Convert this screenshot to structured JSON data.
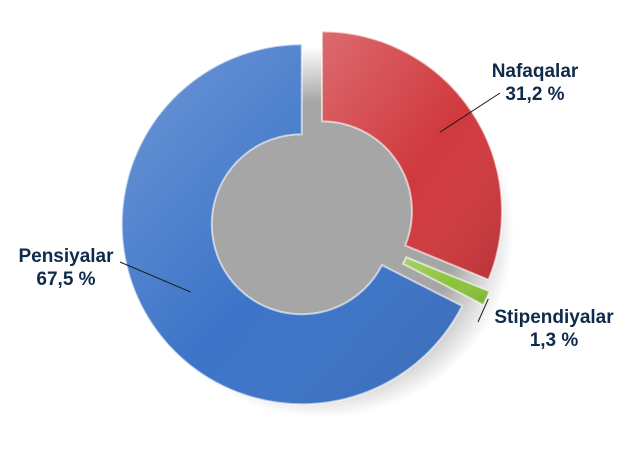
{
  "chart_data": {
    "type": "pie",
    "style": "exploded donut",
    "categories": [
      "Nafaqalar",
      "Stipendiyalar",
      "Pensiyalar"
    ],
    "values": [
      31.2,
      1.3,
      67.5
    ],
    "value_labels": [
      "31,2 %",
      "1,3 %",
      "67,5 %"
    ],
    "colors": [
      "#d0393e",
      "#8cc23c",
      "#3c74c8"
    ],
    "title": "",
    "start_angle": "top, clockwise",
    "legend": "data labels outside with leader lines"
  }
}
